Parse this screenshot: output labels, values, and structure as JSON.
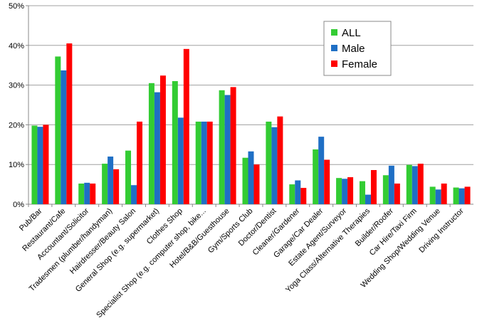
{
  "chart_data": {
    "type": "bar",
    "categories": [
      "Pub/Bar",
      "Restaurant/Cafe",
      "Accountant/Solicitor",
      "Tradesmen (plumber/handyman)",
      "Hairdresser/Beauty Salon",
      "General Shop (e.g. supermarket)",
      "Clothes Shop",
      "Specialist Shop (e.g. computer shop, bike...",
      "Hotel/B&B/Guesthouse",
      "Gym/Sports Club",
      "Doctor/Dentist",
      "Cleaner/Gardener",
      "Garage/Car Dealer",
      "Estate Agent/Surveyor",
      "Yoga Class/Alternative Therapies",
      "Builder/Roofer",
      "Car Hire/Taxi Firm",
      "Wedding Shop/Wedding Venue",
      "Driving Instructor"
    ],
    "series": [
      {
        "name": "ALL",
        "color": "#33cc33",
        "values": [
          19.8,
          37.2,
          5.2,
          10.2,
          13.5,
          30.5,
          31,
          20.8,
          28.7,
          11.7,
          20.8,
          5,
          13.8,
          6.6,
          5.8,
          7.3,
          9.9,
          4.4,
          4.2
        ]
      },
      {
        "name": "Male",
        "color": "#1f6fc5",
        "values": [
          19.5,
          33.7,
          5.4,
          12,
          4.8,
          28.2,
          21.8,
          20.8,
          27.5,
          13.3,
          19.4,
          6,
          17,
          6.4,
          2.4,
          9.7,
          9.6,
          3.7,
          4
        ]
      },
      {
        "name": "Female",
        "color": "#ff0000",
        "values": [
          20,
          40.5,
          5.2,
          8.8,
          20.8,
          32.4,
          39.1,
          20.8,
          29.5,
          10,
          22.1,
          4.1,
          11.2,
          6.8,
          8.6,
          5.2,
          10.2,
          5.2,
          4.4
        ]
      }
    ],
    "ylim": [
      0,
      50
    ],
    "yticks": [
      {
        "value": 0,
        "label": "0%"
      },
      {
        "value": 10,
        "label": "10%"
      },
      {
        "value": 20,
        "label": "20%"
      },
      {
        "value": 30,
        "label": "30%"
      },
      {
        "value": 40,
        "label": "40%"
      },
      {
        "value": 50,
        "label": "50%"
      }
    ],
    "grid": true,
    "legend": "upper-right"
  }
}
